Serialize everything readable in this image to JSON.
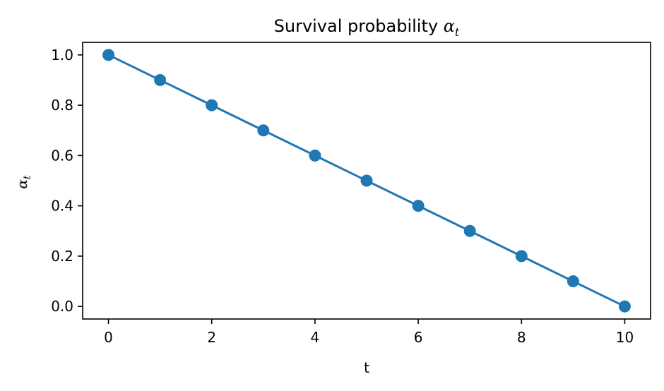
{
  "chart_data": {
    "type": "line",
    "title": {
      "text": "Survival probability ",
      "math_symbol": "α",
      "math_subscript": "t"
    },
    "xlabel": "t",
    "ylabel": {
      "math_symbol": "α",
      "math_subscript": "t"
    },
    "xlim": [
      -0.5,
      10.5
    ],
    "ylim": [
      -0.05,
      1.05
    ],
    "xticks": [
      0,
      2,
      4,
      6,
      8,
      10
    ],
    "xtick_labels": [
      "0",
      "2",
      "4",
      "6",
      "8",
      "10"
    ],
    "yticks": [
      0.0,
      0.2,
      0.4,
      0.6,
      0.8,
      1.0
    ],
    "ytick_labels": [
      "0.0",
      "0.2",
      "0.4",
      "0.6",
      "0.8",
      "1.0"
    ],
    "grid": false,
    "legend": "none",
    "series": [
      {
        "color": "#1f77b4",
        "marker": "circle",
        "x": [
          0,
          1,
          2,
          3,
          4,
          5,
          6,
          7,
          8,
          9,
          10
        ],
        "y": [
          1.0,
          0.9,
          0.8,
          0.7,
          0.6,
          0.5,
          0.4,
          0.3,
          0.2,
          0.1,
          0.0
        ]
      }
    ]
  }
}
